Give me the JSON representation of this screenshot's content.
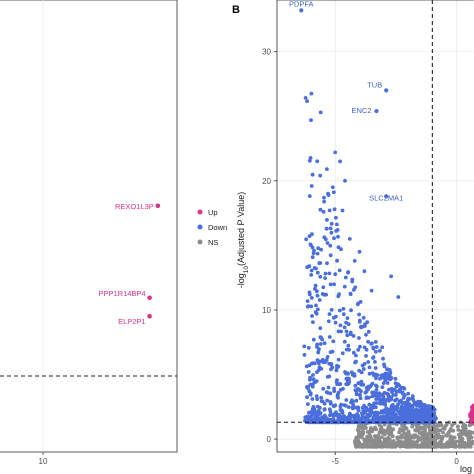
{
  "panel_b_label": "B",
  "legend": [
    {
      "label": "Up",
      "color": "#d6338a"
    },
    {
      "label": "Down",
      "color": "#4a6fdc"
    },
    {
      "label": "NS",
      "color": "#8c8c8c"
    }
  ],
  "chart_data": [
    {
      "type": "scatter",
      "panel": "A",
      "title": "",
      "xlabel": "",
      "ylabel": "",
      "xticks": [
        "10"
      ],
      "series": [
        {
          "name": "Up",
          "color": "#d6338a",
          "points": [
            {
              "label": "REXO1L3P",
              "x": 11.4,
              "y": 5.0
            },
            {
              "label": "PPP1R14BP4",
              "x": 11.3,
              "y": 3.0
            },
            {
              "label": "ELP2P1",
              "x": 11.3,
              "y": 2.6
            }
          ]
        }
      ]
    },
    {
      "type": "scatter",
      "panel": "B",
      "title": "",
      "xlabel": "log",
      "ylabel_prefix": "-log",
      "ylabel_sub": "10",
      "ylabel_suffix": "(Adjusted P Value)",
      "xlim": [
        -7.4,
        0.8
      ],
      "ylim": [
        -1,
        34
      ],
      "yticks": [
        "0",
        "10",
        "20",
        "30"
      ],
      "xticks": [
        "-5",
        "0"
      ],
      "threshold_y": 1.3,
      "threshold_x": [
        -1,
        1
      ],
      "series": [
        {
          "name": "Up",
          "color": "#d6338a"
        },
        {
          "name": "Down",
          "color": "#4a6fdc",
          "labeled_points": [
            {
              "label": "PDPFA",
              "x": -6.4,
              "y": 33.2
            },
            {
              "label": "TUB",
              "x": -2.9,
              "y": 27.0
            },
            {
              "label": "ENC2",
              "x": -3.3,
              "y": 25.4
            },
            {
              "label": "SLC2MA1",
              "x": -2.9,
              "y": 18.8
            }
          ]
        },
        {
          "name": "NS",
          "color": "#8c8c8c"
        }
      ]
    }
  ]
}
